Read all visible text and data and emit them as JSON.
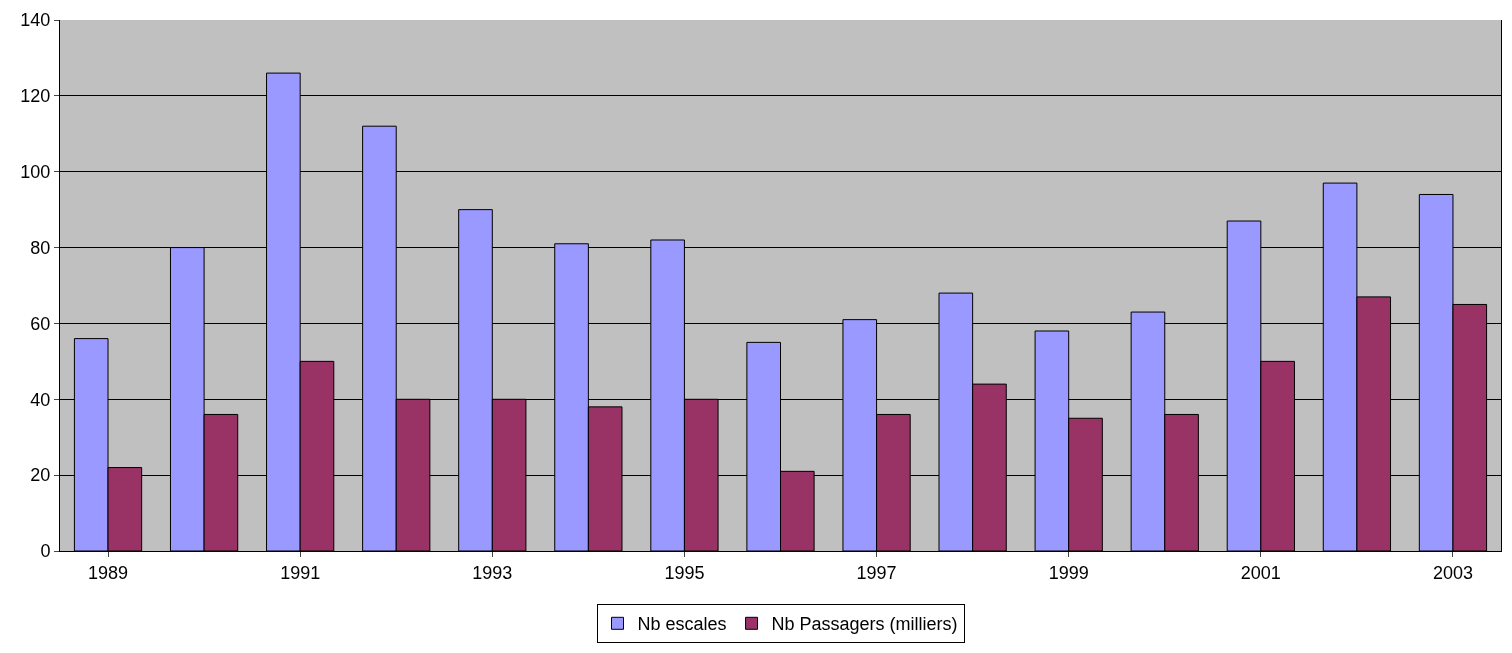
{
  "chart_data": {
    "type": "bar",
    "categories": [
      "1989",
      null,
      "1991",
      null,
      "1993",
      null,
      "1995",
      null,
      "1997",
      null,
      "1999",
      null,
      "2001",
      null,
      "2003"
    ],
    "series": [
      {
        "name": "Nb escales",
        "color": "#9999ff",
        "values": [
          56,
          80,
          126,
          112,
          90,
          81,
          82,
          55,
          61,
          68,
          58,
          63,
          87,
          97,
          94
        ]
      },
      {
        "name": "Nb Passagers (milliers)",
        "color": "#993366",
        "values": [
          22,
          36,
          50,
          40,
          40,
          38,
          40,
          21,
          36,
          44,
          35,
          36,
          50,
          67,
          65
        ]
      }
    ],
    "ylim": [
      0,
      140
    ],
    "yticks": [
      0,
      20,
      40,
      60,
      80,
      100,
      120,
      140
    ],
    "grid": "y",
    "legend": "bottom"
  }
}
